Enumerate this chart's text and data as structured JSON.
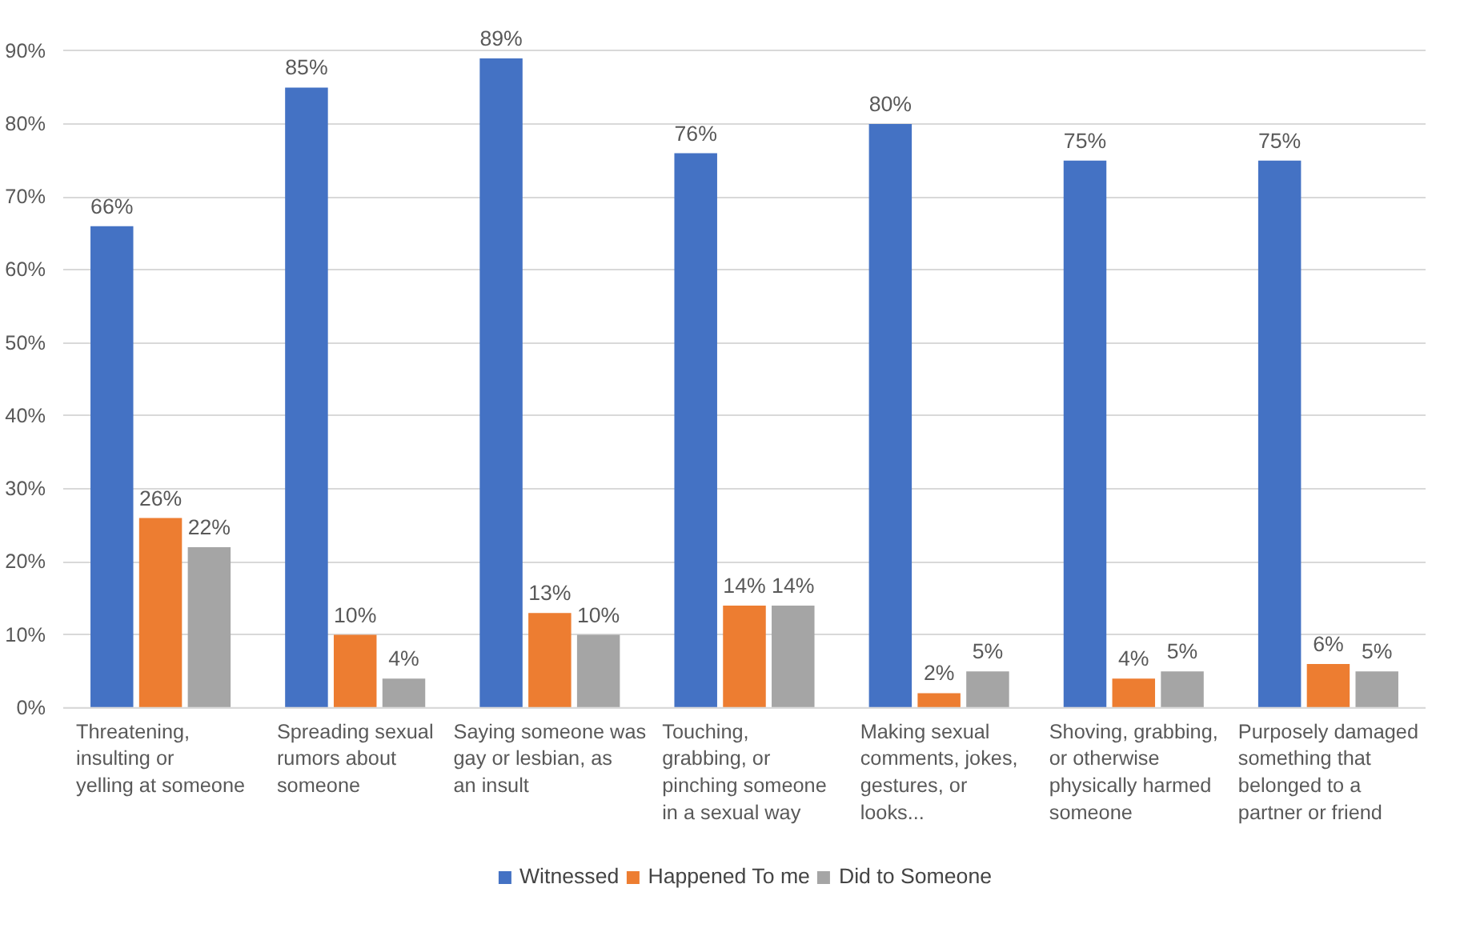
{
  "chart_data": {
    "type": "bar",
    "categories": [
      "Threatening, insulting or yelling at someone",
      "Spreading sexual rumors about someone",
      "Saying someone was gay or lesbian, as an insult",
      "Touching, grabbing, or pinching someone in a sexual way",
      "Making sexual comments, jokes, gestures, or looks...",
      "Shoving, grabbing, or otherwise physically harmed someone",
      "Purposely damaged something that belonged to a partner or friend"
    ],
    "series": [
      {
        "name": "Witnessed",
        "color": "#4472c4",
        "values": [
          66,
          85,
          89,
          76,
          80,
          75,
          75
        ],
        "value_labels": [
          "66%",
          "85%",
          "89%",
          "76%",
          "80%",
          "75%",
          "75%"
        ]
      },
      {
        "name": "Happened To me",
        "color": "#ed7d31",
        "values": [
          26,
          10,
          13,
          14,
          2,
          4,
          6
        ],
        "value_labels": [
          "26%",
          "10%",
          "13%",
          "14%",
          "2%",
          "4%",
          "6%"
        ]
      },
      {
        "name": "Did to Someone",
        "color": "#a5a5a5",
        "values": [
          22,
          4,
          10,
          14,
          5,
          5,
          5
        ],
        "value_labels": [
          "22%",
          "4%",
          "10%",
          "14%",
          "5%",
          "5%",
          "5%"
        ]
      }
    ],
    "ylim": [
      0,
      90
    ],
    "yticks": [
      {
        "value": 0,
        "label": "0%"
      },
      {
        "value": 10,
        "label": "10%"
      },
      {
        "value": 20,
        "label": "20%"
      },
      {
        "value": 30,
        "label": "30%"
      },
      {
        "value": 40,
        "label": "40%"
      },
      {
        "value": 50,
        "label": "50%"
      },
      {
        "value": 60,
        "label": "60%"
      },
      {
        "value": 70,
        "label": "70%"
      },
      {
        "value": 80,
        "label": "80%"
      },
      {
        "value": 90,
        "label": "90%"
      }
    ],
    "grid": "y",
    "legend": "bottom"
  }
}
